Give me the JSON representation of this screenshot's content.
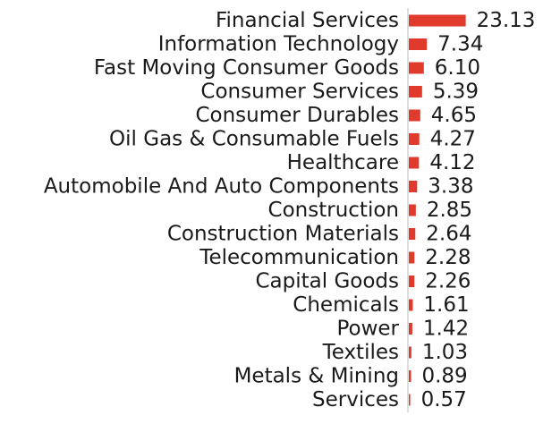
{
  "chart_data": {
    "type": "bar",
    "orientation": "horizontal",
    "categories": [
      "Financial Services",
      "Information Technology",
      "Fast Moving Consumer Goods",
      "Consumer Services",
      "Consumer Durables",
      "Oil Gas & Consumable Fuels",
      "Healthcare",
      "Automobile And Auto Components",
      "Construction",
      "Construction Materials",
      "Telecommunication",
      "Capital Goods",
      "Chemicals",
      "Power",
      "Textiles",
      "Metals & Mining",
      "Services"
    ],
    "values": [
      23.13,
      7.34,
      6.1,
      5.39,
      4.65,
      4.27,
      4.12,
      3.38,
      2.85,
      2.64,
      2.28,
      2.26,
      1.61,
      1.42,
      1.03,
      0.89,
      0.57
    ],
    "value_labels": [
      "23.13",
      "7.34",
      "6.10",
      "5.39",
      "4.65",
      "4.27",
      "4.12",
      "3.38",
      "2.85",
      "2.64",
      "2.28",
      "2.26",
      "1.61",
      "1.42",
      "1.03",
      "0.89",
      "0.57"
    ],
    "bar_color": "#e03a2c",
    "axis_color": "#bdbdbd",
    "grid": false,
    "legend": "none"
  }
}
